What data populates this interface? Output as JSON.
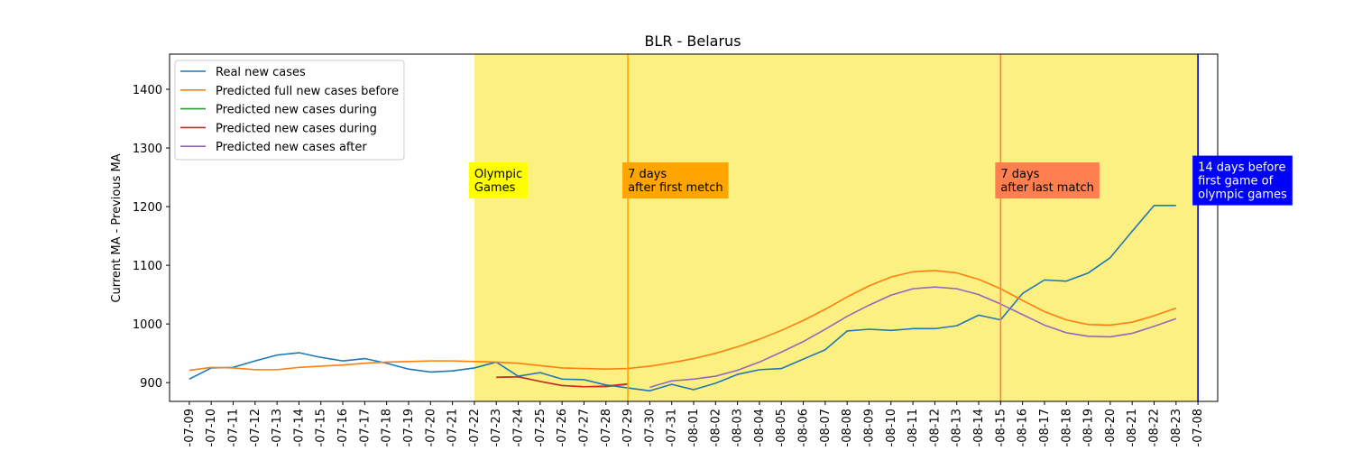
{
  "chart_data": {
    "type": "line",
    "title": "BLR - Belarus",
    "xlabel": "",
    "ylabel": "Current MA - Previous MA",
    "ylim": [
      868,
      1460
    ],
    "yticks": [
      900,
      1000,
      1100,
      1200,
      1300,
      1400
    ],
    "categories": [
      "2021-07-09",
      "2021-07-10",
      "2021-07-11",
      "2021-07-12",
      "2021-07-13",
      "2021-07-14",
      "2021-07-15",
      "2021-07-16",
      "2021-07-17",
      "2021-07-18",
      "2021-07-19",
      "2021-07-20",
      "2021-07-21",
      "2021-07-22",
      "2021-07-23",
      "2021-07-24",
      "2021-07-25",
      "2021-07-26",
      "2021-07-27",
      "2021-07-28",
      "2021-07-29",
      "2021-07-30",
      "2021-07-31",
      "2021-08-01",
      "2021-08-02",
      "2021-08-03",
      "2021-08-04",
      "2021-08-05",
      "2021-08-06",
      "2021-08-07",
      "2021-08-08",
      "2021-08-09",
      "2021-08-10",
      "2021-08-11",
      "2021-08-12",
      "2021-08-13",
      "2021-08-14",
      "2021-08-15",
      "2021-08-16",
      "2021-08-17",
      "2021-08-18",
      "2021-08-19",
      "2021-08-20",
      "2021-08-21",
      "2021-08-22",
      "2021-08-23",
      "2021-07-08"
    ],
    "tick_labels": [
      "-07-09",
      "-07-10",
      "-07-11",
      "-07-12",
      "-07-13",
      "-07-14",
      "-07-15",
      "-07-16",
      "-07-17",
      "-07-18",
      "-07-19",
      "-07-20",
      "-07-21",
      "-07-22",
      "-07-23",
      "-07-24",
      "-07-25",
      "-07-26",
      "-07-27",
      "-07-28",
      "-07-29",
      "-07-30",
      "-07-31",
      "-08-01",
      "-08-02",
      "-08-03",
      "-08-04",
      "-08-05",
      "-08-06",
      "-08-07",
      "-08-08",
      "-08-09",
      "-08-10",
      "-08-11",
      "-08-12",
      "-08-13",
      "-08-14",
      "-08-15",
      "-08-16",
      "-08-17",
      "-08-18",
      "-08-19",
      "-08-20",
      "-08-21",
      "-08-22",
      "-08-23",
      "-07-08"
    ],
    "series": [
      {
        "name": "Real new cases",
        "color": "#1f77b4",
        "values": [
          906,
          925,
          926,
          937,
          947,
          951,
          943,
          937,
          941,
          933,
          923,
          918,
          920,
          925,
          935,
          911,
          917,
          906,
          905,
          896,
          891,
          886,
          897,
          888,
          899,
          914,
          922,
          924,
          940,
          956,
          988,
          991,
          989,
          992,
          992,
          997,
          1015,
          1007,
          1052,
          1075,
          1073,
          1087,
          1113,
          1158,
          1202,
          1202,
          null
        ]
      },
      {
        "name": "Predicted full new cases before",
        "color": "#ff7f0e",
        "values": [
          921,
          926,
          925,
          922,
          922,
          926,
          928,
          930,
          933,
          935,
          936,
          937,
          937,
          936,
          935,
          933,
          929,
          925,
          924,
          923,
          924,
          928,
          934,
          941,
          950,
          961,
          974,
          989,
          1006,
          1025,
          1046,
          1065,
          1080,
          1089,
          1091,
          1087,
          1076,
          1060,
          1040,
          1021,
          1007,
          999,
          998,
          1003,
          1014,
          1027,
          null
        ]
      },
      {
        "name": "Predicted new cases during",
        "color": "#2ca02c",
        "values": [
          null,
          null,
          null,
          null,
          null,
          null,
          null,
          null,
          null,
          null,
          null,
          null,
          null,
          null,
          909,
          910,
          902,
          895,
          893,
          893,
          897,
          null,
          null,
          null,
          null,
          null,
          null,
          null,
          null,
          null,
          null,
          null,
          null,
          null,
          null,
          null,
          null,
          null,
          null,
          null,
          null,
          null,
          null,
          null,
          null,
          null,
          null
        ]
      },
      {
        "name": "Predicted new cases during",
        "color": "#d62728",
        "values": [
          null,
          null,
          null,
          null,
          null,
          null,
          null,
          null,
          null,
          null,
          null,
          null,
          null,
          null,
          909,
          910,
          902,
          895,
          893,
          894,
          898,
          null,
          null,
          null,
          null,
          null,
          null,
          null,
          null,
          null,
          null,
          null,
          null,
          null,
          null,
          null,
          null,
          null,
          null,
          null,
          null,
          null,
          null,
          null,
          null,
          null,
          null
        ]
      },
      {
        "name": "Predicted new cases after",
        "color": "#9467bd",
        "values": [
          null,
          null,
          null,
          null,
          null,
          null,
          null,
          null,
          null,
          null,
          null,
          null,
          null,
          null,
          null,
          null,
          null,
          null,
          null,
          null,
          null,
          892,
          903,
          906,
          911,
          921,
          935,
          952,
          970,
          991,
          1013,
          1032,
          1049,
          1060,
          1063,
          1060,
          1050,
          1034,
          1016,
          998,
          985,
          979,
          978,
          984,
          996,
          1009,
          null
        ]
      }
    ],
    "shaded_region": {
      "from": "2021-07-22",
      "to": "2021-07-08",
      "color": "#fdf083"
    },
    "vertical_lines": [
      {
        "at": "2021-07-29",
        "color": "#ffa500",
        "label": "7 days\nafter first metch",
        "box_color": "#ffa500",
        "text_color": "#000000"
      },
      {
        "at": "2021-08-15",
        "color": "#ff7f50",
        "label": "7 days\nafter last match",
        "box_color": "#ff7f50",
        "text_color": "#000000"
      },
      {
        "at": "2021-07-08",
        "color": "#0000cc",
        "label": "14 days before\nfirst game of\nolympic games",
        "box_color": "#0000ff",
        "text_color": "#ffffff"
      }
    ],
    "annotations": [
      {
        "at": "2021-07-22",
        "label": "Olympic\nGames",
        "box_color": "#ffff00",
        "text_color": "#000000"
      }
    ],
    "annotation_y": 1240,
    "legend_position": "top-left",
    "grid": false
  }
}
